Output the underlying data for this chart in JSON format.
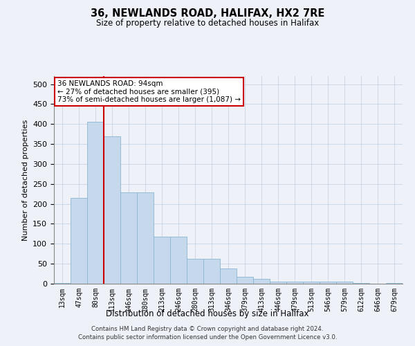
{
  "title1": "36, NEWLANDS ROAD, HALIFAX, HX2 7RE",
  "title2": "Size of property relative to detached houses in Halifax",
  "xlabel": "Distribution of detached houses by size in Halifax",
  "ylabel": "Number of detached properties",
  "categories": [
    "13sqm",
    "47sqm",
    "80sqm",
    "113sqm",
    "146sqm",
    "180sqm",
    "213sqm",
    "246sqm",
    "280sqm",
    "313sqm",
    "346sqm",
    "379sqm",
    "413sqm",
    "446sqm",
    "479sqm",
    "513sqm",
    "546sqm",
    "579sqm",
    "612sqm",
    "646sqm",
    "679sqm"
  ],
  "values": [
    2,
    215,
    405,
    370,
    228,
    228,
    118,
    118,
    63,
    63,
    38,
    17,
    12,
    5,
    5,
    5,
    5,
    6,
    1,
    0,
    1
  ],
  "bar_color": "#c6d9ec",
  "bar_edge_color": "#8ab4d4",
  "vline_color": "#cc0000",
  "vline_index": 2.5,
  "annotation_text": "36 NEWLANDS ROAD: 94sqm\n← 27% of detached houses are smaller (395)\n73% of semi-detached houses are larger (1,087) →",
  "annotation_box_color": "#ffffff",
  "annotation_box_edge": "#cc0000",
  "ylim": [
    0,
    520
  ],
  "yticks": [
    0,
    50,
    100,
    150,
    200,
    250,
    300,
    350,
    400,
    450,
    500
  ],
  "grid_color": "#c0cfe0",
  "background_color": "#eef2f8",
  "footer1": "Contains HM Land Registry data © Crown copyright and database right 2024.",
  "footer2": "Contains public sector information licensed under the Open Government Licence v3.0."
}
